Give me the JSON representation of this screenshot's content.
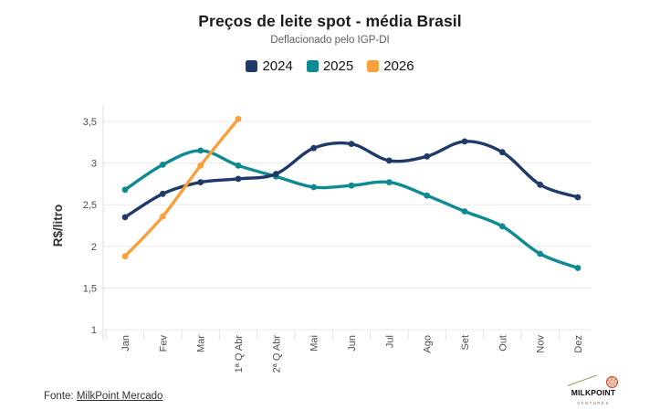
{
  "header": {
    "title": "Preços de leite spot - média Brasil",
    "subtitle": "Deflacionado pelo IGP-DI"
  },
  "legend": [
    {
      "label": "2024",
      "color": "#1f3a68"
    },
    {
      "label": "2025",
      "color": "#0e8a93"
    },
    {
      "label": "2026",
      "color": "#f7a03c"
    }
  ],
  "chart_data": {
    "type": "line",
    "categories": [
      "Jan",
      "Fev",
      "Mar",
      "1ª Q Abr",
      "2ª Q Abr",
      "Mai",
      "Jun",
      "Jul",
      "Ago",
      "Set",
      "Out",
      "Nov",
      "Dez"
    ],
    "series": [
      {
        "name": "2024",
        "color": "#1f3a68",
        "values": [
          2.35,
          2.63,
          2.77,
          2.81,
          2.87,
          3.18,
          3.23,
          3.03,
          3.08,
          3.26,
          3.13,
          2.74,
          2.59
        ]
      },
      {
        "name": "2025",
        "color": "#0e8a93",
        "values": [
          2.68,
          2.98,
          3.15,
          2.97,
          2.84,
          2.71,
          2.73,
          2.77,
          2.61,
          2.42,
          2.24,
          1.91,
          1.74
        ]
      },
      {
        "name": "2026",
        "color": "#f7a03c",
        "values": [
          1.88,
          2.36,
          2.97,
          3.53,
          null,
          null,
          null,
          null,
          null,
          null,
          null,
          null,
          null
        ]
      }
    ],
    "title": "Preços de leite spot - média Brasil",
    "subtitle": "Deflacionado pelo IGP-DI",
    "xlabel": "",
    "ylabel": "R$/litro",
    "yticks": [
      1,
      1.5,
      2,
      2.5,
      3,
      3.5
    ],
    "ytick_labels": [
      "1",
      "1,5",
      "2",
      "2,5",
      "3",
      "3,5"
    ],
    "ylim": [
      1,
      3.6
    ],
    "grid": "horizontal",
    "legend_position": "top"
  },
  "footer": {
    "source_prefix": "Fonte: ",
    "source_link": "MilkPoint Mercado",
    "logo_text": "MILKPOINT",
    "logo_subtext": "VENTURES"
  },
  "colors": {
    "gridline": "#e8e8e8",
    "axis_line": "#dcdcdc",
    "tick_text": "#4d4d4d",
    "background": "#ffffff"
  }
}
